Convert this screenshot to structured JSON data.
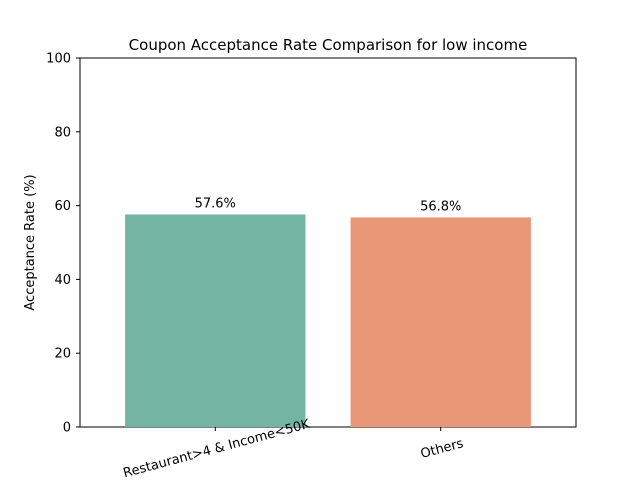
{
  "chart_data": {
    "type": "bar",
    "title": "Coupon Acceptance Rate Comparison for low income",
    "xlabel": "",
    "ylabel": "Acceptance Rate (%)",
    "ylim": [
      0,
      100
    ],
    "yticks": [
      0,
      20,
      40,
      60,
      80,
      100
    ],
    "categories": [
      "Restaurant>4 & Income<50K",
      "Others"
    ],
    "values": [
      57.6,
      56.8
    ],
    "data_labels": [
      "57.6%",
      "56.8%"
    ],
    "bar_colors": [
      "#73b5a2",
      "#e89876"
    ],
    "x_tick_rotation_deg": -15,
    "grid": false,
    "legend": "none"
  }
}
